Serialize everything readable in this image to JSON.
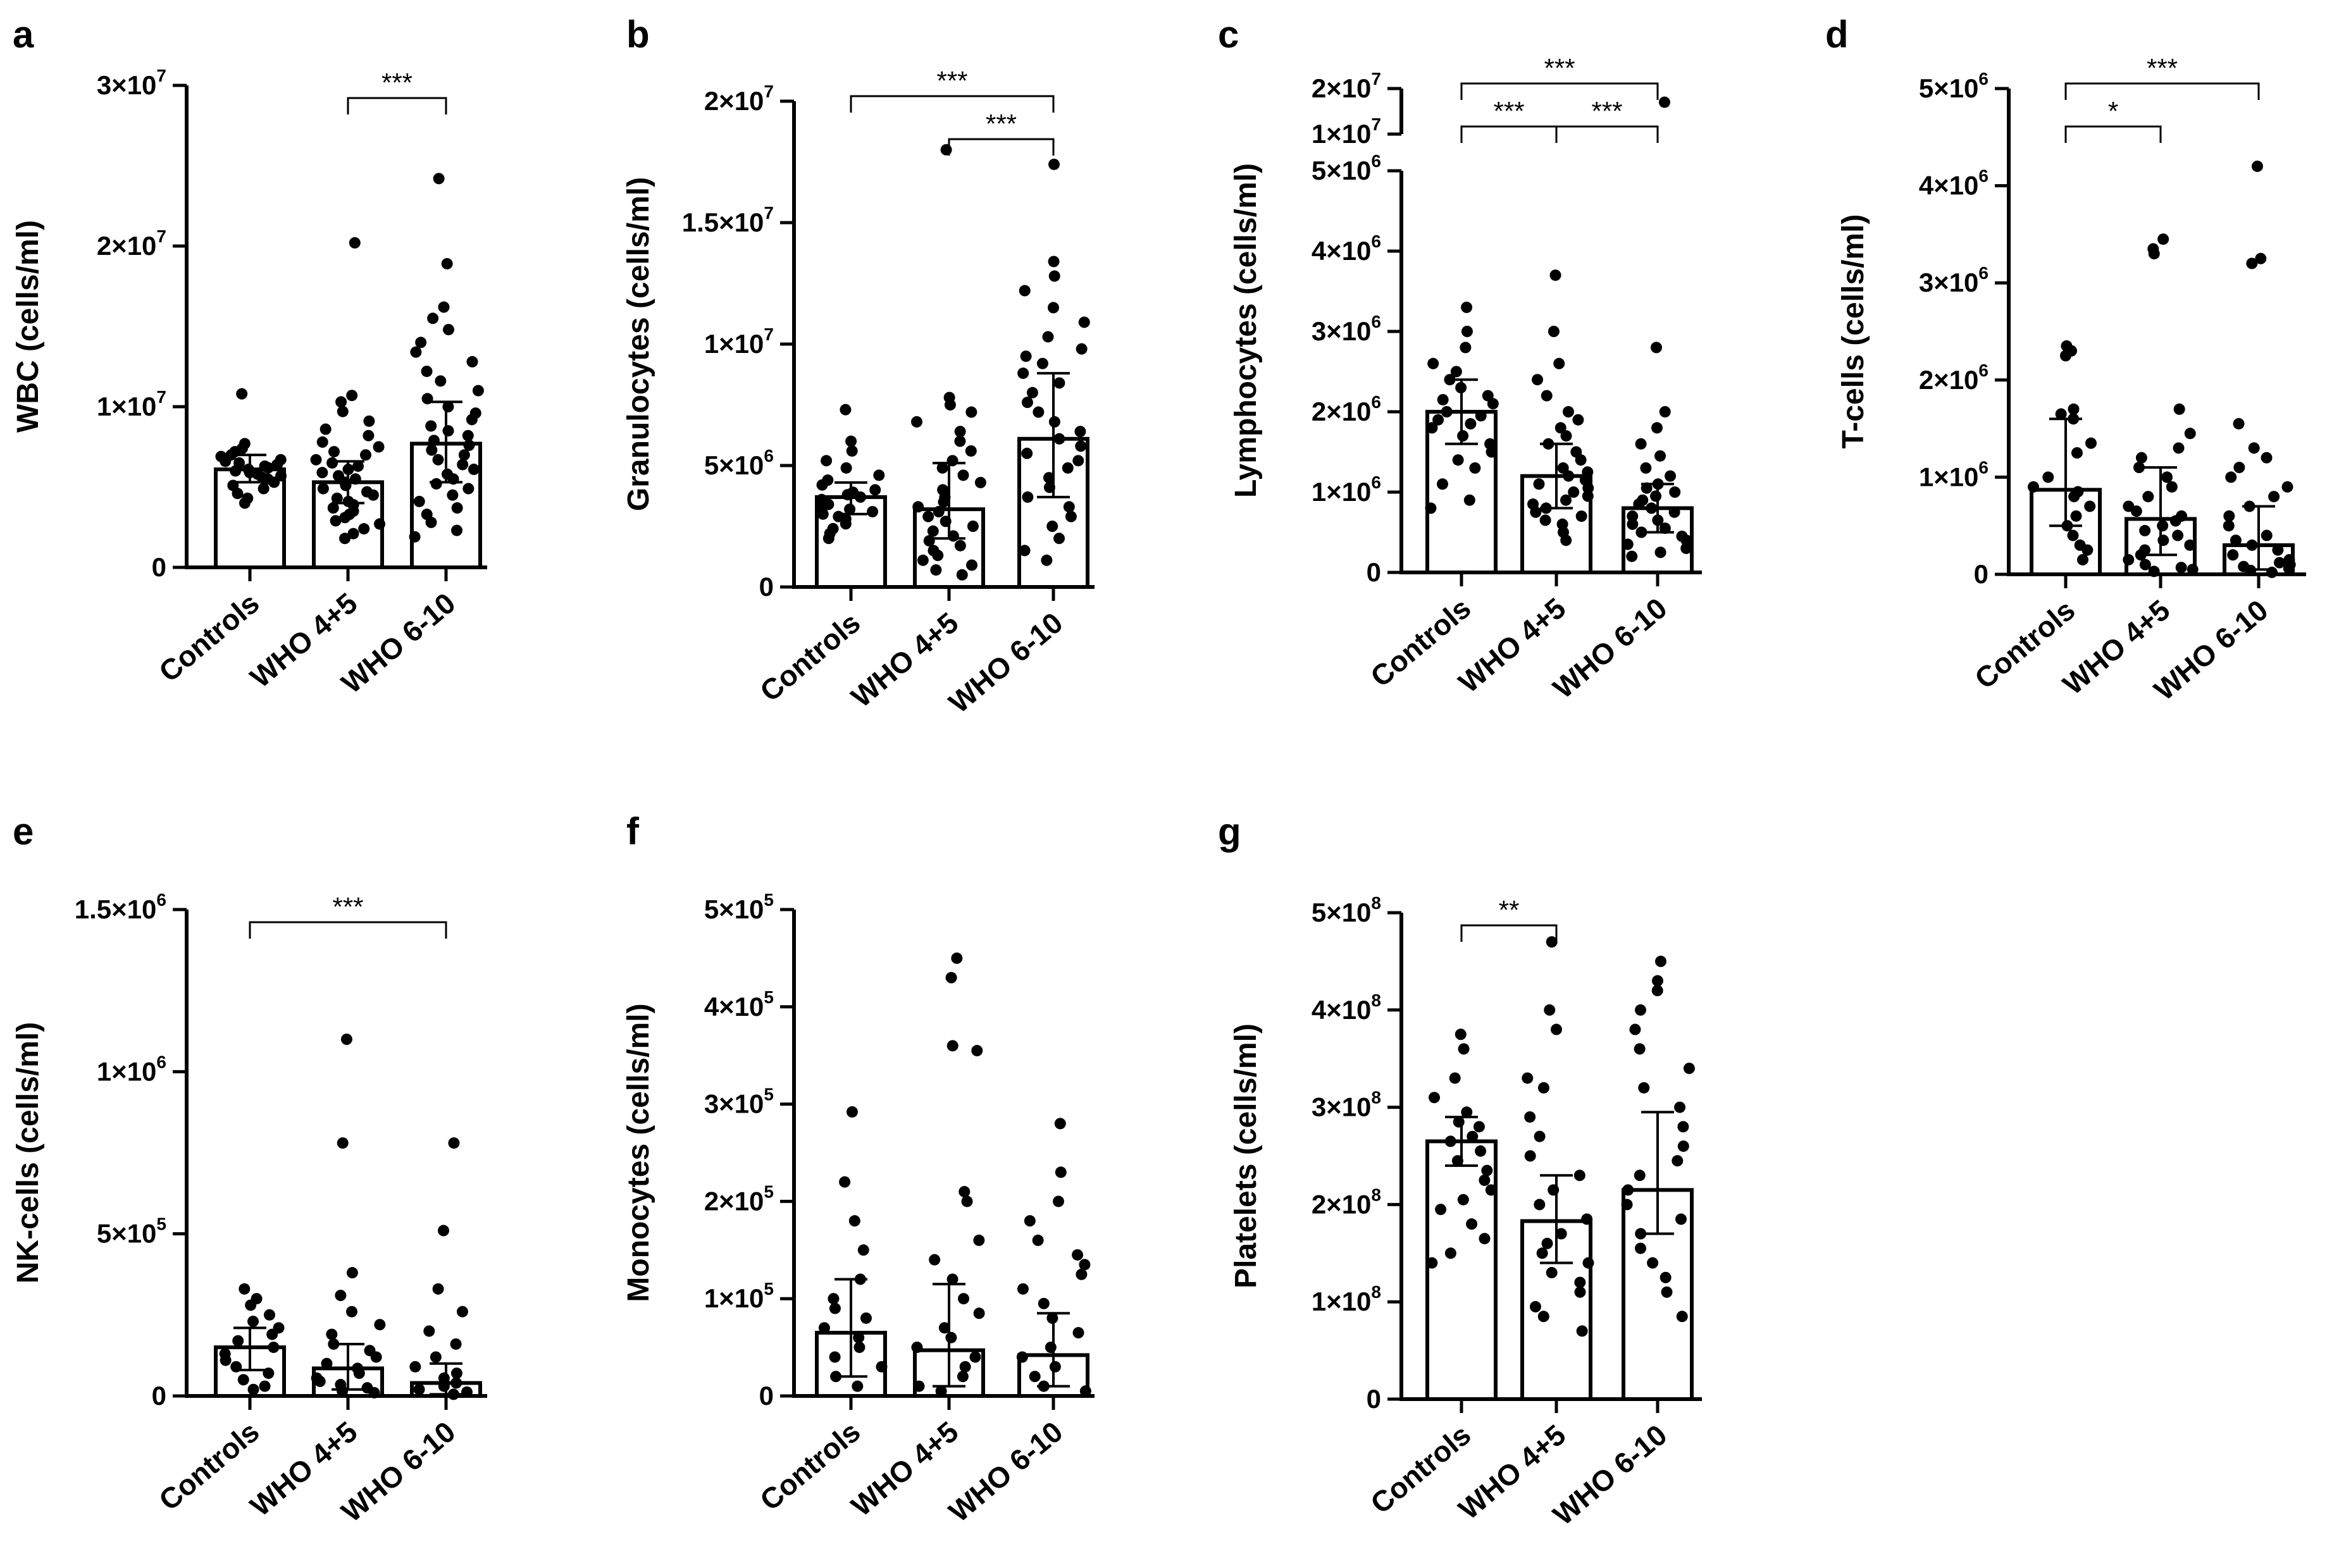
{
  "chart_data": [
    {
      "panel": "a",
      "type": "bar",
      "categories": [
        "Controls",
        "WHO 4+5",
        "WHO 6-10"
      ],
      "ylabel": "WBC (cells/ml)",
      "ylim": [
        0,
        30000000
      ],
      "yticks": [
        {
          "value": 0,
          "mant": "0",
          "exp": ""
        },
        {
          "value": 10000000,
          "mant": "1×10",
          "exp": "7"
        },
        {
          "value": 20000000,
          "mant": "2×10",
          "exp": "7"
        },
        {
          "value": 30000000,
          "mant": "3×10",
          "exp": "7"
        }
      ],
      "means": [
        6100000,
        5300000,
        7700000
      ],
      "errors": [
        [
          5300000,
          7000000
        ],
        [
          4000000,
          6600000
        ],
        [
          5300000,
          10300000
        ]
      ],
      "points": [
        [
          10800000,
          7700000,
          7400000,
          7200000,
          7000000,
          6900000,
          6700000,
          6600000,
          6500000,
          6400000,
          6300000,
          6200000,
          6100000,
          6000000,
          5900000,
          5800000,
          5700000,
          5600000,
          5500000,
          5300000,
          5100000,
          4900000,
          4600000,
          4300000,
          4000000
        ],
        [
          20200000,
          10700000,
          10300000,
          9700000,
          9100000,
          8600000,
          8200000,
          7800000,
          7500000,
          7200000,
          7000000,
          6700000,
          6500000,
          6300000,
          6100000,
          5900000,
          5700000,
          5500000,
          5300000,
          5100000,
          4900000,
          4700000,
          4500000,
          4300000,
          4100000,
          3900000,
          3700000,
          3500000,
          3300000,
          3100000,
          2900000,
          2700000,
          2400000,
          2100000,
          1800000
        ],
        [
          24200000,
          18900000,
          16200000,
          15500000,
          14800000,
          14000000,
          13400000,
          12800000,
          12200000,
          11600000,
          11000000,
          10500000,
          10000000,
          9600000,
          9200000,
          8800000,
          8500000,
          8200000,
          7900000,
          7600000,
          7300000,
          7000000,
          6700000,
          6400000,
          6100000,
          5800000,
          5500000,
          5200000,
          4900000,
          4500000,
          4100000,
          3700000,
          3300000,
          2800000,
          2300000,
          1900000
        ]
      ],
      "significance": [
        {
          "from": 1,
          "to": 2,
          "level": 1,
          "label": "***"
        }
      ]
    },
    {
      "panel": "b",
      "type": "bar",
      "categories": [
        "Controls",
        "WHO 4+5",
        "WHO 6-10"
      ],
      "ylabel": "Granulocytes (cells/ml)",
      "ylim": [
        0,
        20000000
      ],
      "yticks": [
        {
          "value": 0,
          "mant": "0",
          "exp": ""
        },
        {
          "value": 5000000,
          "mant": "5×10",
          "exp": "6"
        },
        {
          "value": 10000000,
          "mant": "1×10",
          "exp": "7"
        },
        {
          "value": 15000000,
          "mant": "1.5×10",
          "exp": "7"
        },
        {
          "value": 20000000,
          "mant": "2×10",
          "exp": "7"
        }
      ],
      "means": [
        3700000,
        3200000,
        6100000
      ],
      "errors": [
        [
          3000000,
          4300000
        ],
        [
          2000000,
          5100000
        ],
        [
          3700000,
          8800000
        ]
      ],
      "points": [
        [
          7300000,
          6000000,
          5600000,
          5200000,
          4900000,
          4600000,
          4400000,
          4200000,
          4000000,
          3900000,
          3800000,
          3700000,
          3600000,
          3500000,
          3400000,
          3300000,
          3200000,
          3100000,
          3000000,
          2900000,
          2800000,
          2600000,
          2400000,
          2200000,
          2000000
        ],
        [
          18000000,
          7800000,
          7500000,
          7200000,
          6800000,
          6400000,
          6000000,
          5600000,
          5200000,
          4900000,
          4600000,
          4300000,
          4000000,
          3700000,
          3500000,
          3300000,
          3100000,
          2900000,
          2700000,
          2500000,
          2300000,
          2100000,
          1900000,
          1700000,
          1500000,
          1300000,
          1100000,
          900000,
          700000,
          500000
        ],
        [
          17400000,
          13400000,
          12800000,
          12200000,
          11500000,
          10900000,
          10300000,
          9800000,
          9500000,
          9200000,
          8800000,
          8400000,
          8000000,
          7600000,
          7200000,
          6800000,
          6400000,
          6100000,
          5800000,
          5500000,
          5200000,
          4900000,
          4500000,
          4100000,
          3700000,
          3300000,
          2900000,
          2500000,
          2000000,
          1500000,
          1100000
        ]
      ],
      "significance": [
        {
          "from": 1,
          "to": 2,
          "level": 1,
          "label": "***"
        },
        {
          "from": 0,
          "to": 2,
          "level": 2,
          "label": "***"
        }
      ]
    },
    {
      "panel": "c",
      "type": "bar",
      "broken_axis": true,
      "categories": [
        "Controls",
        "WHO 4+5",
        "WHO 6-10"
      ],
      "ylabel": "Lymphocytes (cells/ml)",
      "ylim": [
        0,
        5000000
      ],
      "upper_ylim": [
        10000000,
        20000000
      ],
      "yticks": [
        {
          "value": 0,
          "mant": "0",
          "exp": ""
        },
        {
          "value": 1000000,
          "mant": "1×10",
          "exp": "6"
        },
        {
          "value": 2000000,
          "mant": "2×10",
          "exp": "6"
        },
        {
          "value": 3000000,
          "mant": "3×10",
          "exp": "6"
        },
        {
          "value": 4000000,
          "mant": "4×10",
          "exp": "6"
        },
        {
          "value": 5000000,
          "mant": "5×10",
          "exp": "6"
        }
      ],
      "upper_yticks": [
        {
          "value": 10000000,
          "mant": "1×10",
          "exp": "7"
        },
        {
          "value": 20000000,
          "mant": "2×10",
          "exp": "7"
        }
      ],
      "means": [
        2000000,
        1200000,
        800000
      ],
      "errors": [
        [
          1600000,
          2400000
        ],
        [
          800000,
          1600000
        ],
        [
          500000,
          1100000
        ]
      ],
      "points": [
        [
          3300000,
          3000000,
          2800000,
          2600000,
          2500000,
          2400000,
          2300000,
          2200000,
          2150000,
          2100000,
          2000000,
          1950000,
          1900000,
          1850000,
          1800000,
          1700000,
          1600000,
          1500000,
          1400000,
          1300000,
          1100000,
          900000,
          800000
        ],
        [
          3700000,
          3000000,
          2600000,
          2400000,
          2200000,
          2000000,
          1900000,
          1800000,
          1700000,
          1600000,
          1500000,
          1400000,
          1300000,
          1250000,
          1200000,
          1150000,
          1100000,
          1050000,
          1000000,
          950000,
          900000,
          850000,
          800000,
          750000,
          700000,
          650000,
          600000,
          500000,
          400000
        ],
        [
          17000000,
          2800000,
          2000000,
          1800000,
          1600000,
          1450000,
          1300000,
          1200000,
          1100000,
          1050000,
          1000000,
          950000,
          900000,
          850000,
          800000,
          750000,
          700000,
          650000,
          600000,
          550000,
          500000,
          450000,
          400000,
          350000,
          300000,
          250000,
          200000
        ]
      ],
      "significance": [
        {
          "from": 0,
          "to": 1,
          "level": 1,
          "label": "***"
        },
        {
          "from": 1,
          "to": 2,
          "level": 1,
          "label": "***"
        },
        {
          "from": 0,
          "to": 2,
          "level": 2,
          "label": "***"
        }
      ]
    },
    {
      "panel": "d",
      "type": "bar",
      "categories": [
        "Controls",
        "WHO 4+5",
        "WHO 6-10"
      ],
      "ylabel": "T-cells (cells/ml)",
      "ylim": [
        0,
        5000000
      ],
      "yticks": [
        {
          "value": 0,
          "mant": "0",
          "exp": ""
        },
        {
          "value": 1000000,
          "mant": "1×10",
          "exp": "6"
        },
        {
          "value": 2000000,
          "mant": "2×10",
          "exp": "6"
        },
        {
          "value": 3000000,
          "mant": "3×10",
          "exp": "6"
        },
        {
          "value": 4000000,
          "mant": "4×10",
          "exp": "6"
        },
        {
          "value": 5000000,
          "mant": "5×10",
          "exp": "6"
        }
      ],
      "means": [
        870000,
        570000,
        300000
      ],
      "errors": [
        [
          500000,
          1600000
        ],
        [
          200000,
          1100000
        ],
        [
          50000,
          700000
        ]
      ],
      "points": [
        [
          2350000,
          2300000,
          2250000,
          1700000,
          1650000,
          1600000,
          1350000,
          1250000,
          1000000,
          900000,
          850000,
          800000,
          700000,
          600000,
          500000,
          400000,
          300000,
          250000,
          150000
        ],
        [
          3450000,
          3350000,
          3300000,
          1700000,
          1450000,
          1300000,
          1200000,
          1100000,
          1000000,
          900000,
          800000,
          700000,
          650000,
          600000,
          550000,
          500000,
          450000,
          400000,
          350000,
          300000,
          250000,
          200000,
          150000,
          100000,
          70000,
          50000,
          30000
        ],
        [
          4200000,
          3250000,
          3200000,
          1550000,
          1300000,
          1200000,
          1100000,
          1000000,
          900000,
          800000,
          700000,
          600000,
          500000,
          400000,
          350000,
          300000,
          250000,
          200000,
          150000,
          120000,
          100000,
          80000,
          60000,
          40000,
          20000
        ]
      ],
      "significance": [
        {
          "from": 0,
          "to": 1,
          "level": 1,
          "label": "*"
        },
        {
          "from": 0,
          "to": 2,
          "level": 2,
          "label": "***"
        }
      ]
    },
    {
      "panel": "e",
      "type": "bar",
      "categories": [
        "Controls",
        "WHO 4+5",
        "WHO 6-10"
      ],
      "ylabel": "NK-cells (cells/ml)",
      "ylim": [
        0,
        1500000
      ],
      "yticks": [
        {
          "value": 0,
          "mant": "0",
          "exp": ""
        },
        {
          "value": 500000,
          "mant": "5×10",
          "exp": "5"
        },
        {
          "value": 1000000,
          "mant": "1×10",
          "exp": "6"
        },
        {
          "value": 1500000,
          "mant": "1.5×10",
          "exp": "6"
        }
      ],
      "means": [
        150000,
        85000,
        40000
      ],
      "errors": [
        [
          80000,
          210000
        ],
        [
          20000,
          160000
        ],
        [
          5000,
          100000
        ]
      ],
      "points": [
        [
          330000,
          300000,
          280000,
          250000,
          230000,
          210000,
          190000,
          170000,
          150000,
          130000,
          110000,
          90000,
          70000,
          50000,
          30000,
          20000
        ],
        [
          1100000,
          780000,
          380000,
          310000,
          260000,
          220000,
          190000,
          160000,
          140000,
          120000,
          100000,
          85000,
          70000,
          55000,
          45000,
          35000,
          25000,
          15000,
          10000
        ],
        [
          780000,
          510000,
          330000,
          260000,
          200000,
          160000,
          120000,
          90000,
          70000,
          55000,
          40000,
          30000,
          20000,
          12000,
          5000
        ]
      ],
      "significance": [
        {
          "from": 0,
          "to": 2,
          "level": 1,
          "label": "***"
        }
      ]
    },
    {
      "panel": "f",
      "type": "bar",
      "categories": [
        "Controls",
        "WHO 4+5",
        "WHO 6-10"
      ],
      "ylabel": "Monocytes (cells/ml)",
      "ylim": [
        0,
        500000
      ],
      "yticks": [
        {
          "value": 0,
          "mant": "0",
          "exp": ""
        },
        {
          "value": 100000,
          "mant": "1×10",
          "exp": "5"
        },
        {
          "value": 200000,
          "mant": "2×10",
          "exp": "5"
        },
        {
          "value": 300000,
          "mant": "3×10",
          "exp": "5"
        },
        {
          "value": 400000,
          "mant": "4×10",
          "exp": "5"
        },
        {
          "value": 500000,
          "mant": "5×10",
          "exp": "5"
        }
      ],
      "means": [
        65000,
        47000,
        42000
      ],
      "errors": [
        [
          20000,
          120000
        ],
        [
          10000,
          115000
        ],
        [
          10000,
          85000
        ]
      ],
      "points": [
        [
          292000,
          220000,
          180000,
          150000,
          120000,
          100000,
          90000,
          80000,
          70000,
          60000,
          50000,
          40000,
          30000,
          20000,
          10000
        ],
        [
          450000,
          430000,
          360000,
          355000,
          210000,
          200000,
          160000,
          140000,
          120000,
          100000,
          85000,
          70000,
          60000,
          50000,
          40000,
          30000,
          20000,
          10000,
          5000
        ],
        [
          280000,
          230000,
          200000,
          180000,
          160000,
          145000,
          135000,
          125000,
          110000,
          95000,
          80000,
          65000,
          50000,
          40000,
          30000,
          20000,
          10000,
          5000
        ]
      ],
      "significance": []
    },
    {
      "panel": "g",
      "type": "bar",
      "categories": [
        "Controls",
        "WHO 4+5",
        "WHO 6-10"
      ],
      "ylabel": "Platelets (cells/ml)",
      "ylim": [
        0,
        500000000
      ],
      "yticks": [
        {
          "value": 0,
          "mant": "0",
          "exp": ""
        },
        {
          "value": 100000000,
          "mant": "1×10",
          "exp": "8"
        },
        {
          "value": 200000000,
          "mant": "2×10",
          "exp": "8"
        },
        {
          "value": 300000000,
          "mant": "3×10",
          "exp": "8"
        },
        {
          "value": 400000000,
          "mant": "4×10",
          "exp": "8"
        },
        {
          "value": 500000000,
          "mant": "5×10",
          "exp": "8"
        }
      ],
      "means": [
        265000000,
        183000000,
        215000000
      ],
      "errors": [
        [
          240000000,
          290000000
        ],
        [
          140000000,
          230000000
        ],
        [
          170000000,
          295000000
        ]
      ],
      "points": [
        [
          375000000,
          360000000,
          330000000,
          310000000,
          295000000,
          285000000,
          280000000,
          270000000,
          265000000,
          255000000,
          245000000,
          235000000,
          225000000,
          215000000,
          205000000,
          195000000,
          180000000,
          165000000,
          150000000,
          140000000
        ],
        [
          470000000,
          400000000,
          380000000,
          330000000,
          320000000,
          290000000,
          270000000,
          250000000,
          230000000,
          215000000,
          200000000,
          185000000,
          170000000,
          160000000,
          150000000,
          140000000,
          130000000,
          120000000,
          110000000,
          95000000,
          85000000,
          70000000
        ],
        [
          450000000,
          430000000,
          420000000,
          400000000,
          380000000,
          360000000,
          340000000,
          320000000,
          300000000,
          280000000,
          260000000,
          245000000,
          230000000,
          215000000,
          200000000,
          185000000,
          170000000,
          155000000,
          140000000,
          125000000,
          110000000,
          85000000
        ]
      ],
      "significance": [
        {
          "from": 0,
          "to": 1,
          "level": 1,
          "label": "**"
        }
      ]
    }
  ]
}
